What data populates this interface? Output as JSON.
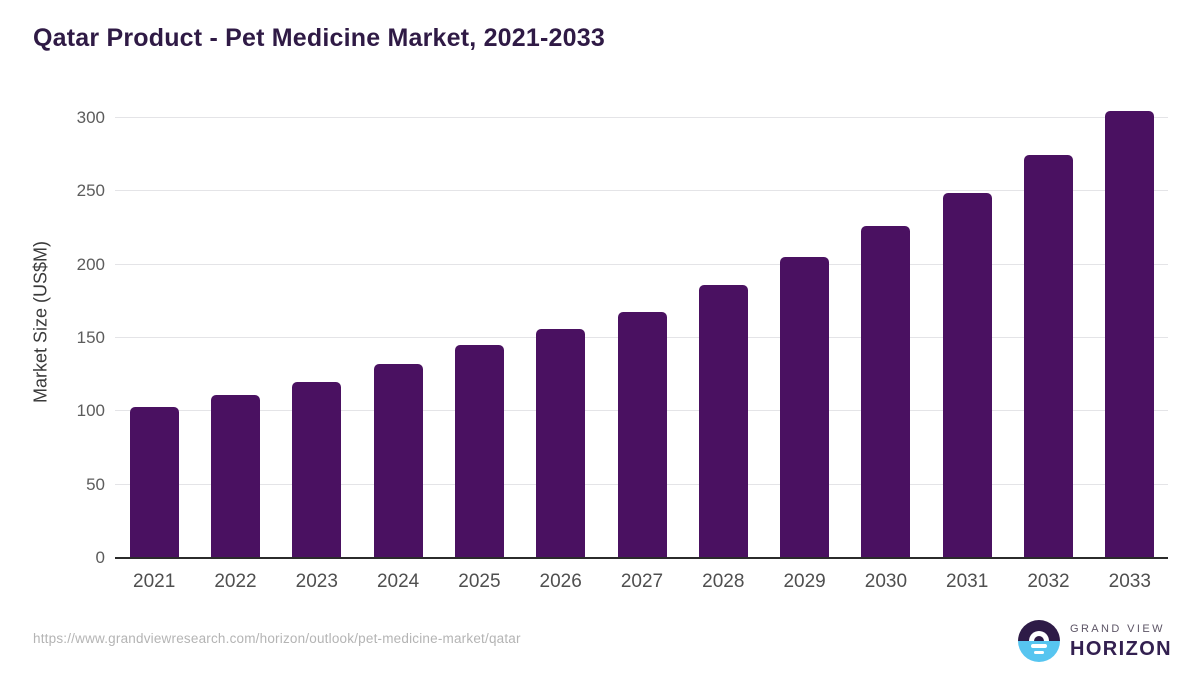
{
  "header": {
    "title": "Qatar Product - Pet Medicine Market, 2021-2033"
  },
  "chart_data": {
    "type": "bar",
    "title": "Qatar Product - Pet Medicine Market, 2021-2033",
    "categories": [
      "2021",
      "2022",
      "2023",
      "2024",
      "2025",
      "2026",
      "2027",
      "2028",
      "2029",
      "2030",
      "2031",
      "2032",
      "2033"
    ],
    "values": [
      103,
      111,
      120,
      132,
      145,
      156,
      168,
      186,
      205,
      226,
      249,
      275,
      305
    ],
    "xlabel": "",
    "ylabel": "Market Size (US$M)",
    "ylim": [
      0,
      319
    ],
    "yticks": [
      0,
      50,
      100,
      150,
      200,
      250,
      300
    ],
    "grid": "horizontal",
    "legend": "none",
    "bar_color": "#4a1161"
  },
  "footer": {
    "url": "https://www.grandviewresearch.com/horizon/outlook/pet-medicine-market/qatar",
    "logo": {
      "brand_top": "GRAND VIEW",
      "brand_bottom": "HORIZON",
      "icon": "sunrise-horizon-icon",
      "icon_purple": "#2e1b47",
      "icon_blue": "#57c5f0"
    }
  },
  "colors": {
    "title_text": "#2f1a45",
    "axis_line": "#2b2b2b",
    "gridline": "#e4e4e7",
    "tick_text": "#5c5c5c",
    "url_text": "#b4b4b4"
  }
}
